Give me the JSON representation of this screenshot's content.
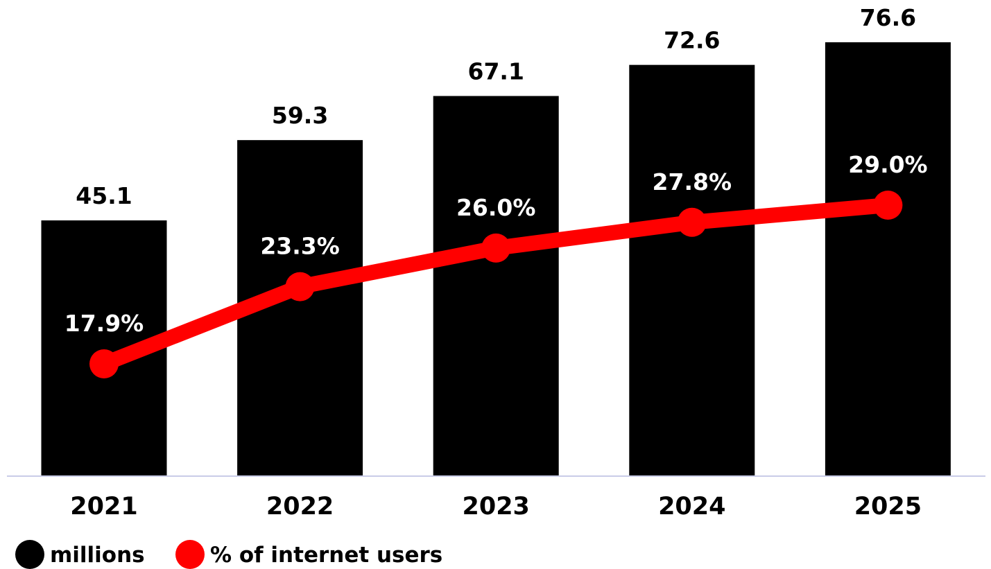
{
  "chart_data": {
    "type": "bar",
    "title": "",
    "xlabel": "",
    "ylabel": "",
    "categories": [
      "2021",
      "2022",
      "2023",
      "2024",
      "2025"
    ],
    "series": [
      {
        "name": "millions",
        "type": "bar",
        "color": "#000000",
        "values": [
          45.1,
          59.3,
          67.1,
          72.6,
          76.6
        ],
        "labels": [
          "45.1",
          "59.3",
          "67.1",
          "72.6",
          "76.6"
        ]
      },
      {
        "name": "% of internet users",
        "type": "line",
        "color": "#ff0000",
        "values": [
          17.9,
          23.3,
          26.0,
          27.8,
          29.0
        ],
        "labels": [
          "17.9%",
          "23.3%",
          "26.0%",
          "27.8%",
          "29.0%"
        ]
      }
    ],
    "ylim_bars": [
      0,
      82
    ],
    "ylim_line": [
      0,
      40
    ],
    "grid": false,
    "legend": {
      "placement": "bottom-left",
      "items": [
        {
          "label": "millions",
          "color": "#000000"
        },
        {
          "label": "% of internet users",
          "color": "#ff0000"
        }
      ]
    },
    "axis_color": "#c9cce8"
  }
}
